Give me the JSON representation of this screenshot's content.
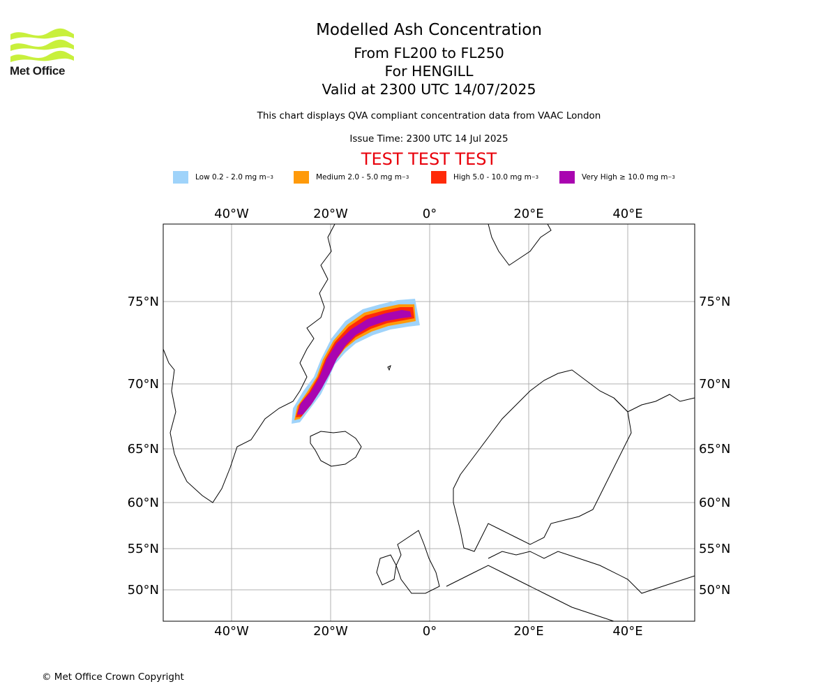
{
  "header": {
    "title": "Modelled Ash Concentration",
    "level_range": "From FL200 to FL250",
    "volcano": "For HENGILL",
    "valid": "Valid at 2300 UTC 14/07/2025",
    "description": "This chart displays QVA compliant concentration data from VAAC London",
    "issue_time": "Issue Time: 2300 UTC 14 Jul 2025",
    "test_banner": "TEST TEST TEST"
  },
  "logo": {
    "text": "Met Office",
    "color": "#c8f03c"
  },
  "legend": [
    {
      "label": "Low 0.2 - 2.0 mg m",
      "superscript": "−3",
      "color": "#9fd3fa"
    },
    {
      "label": "Medium 2.0 - 5.0 mg m",
      "superscript": "−3",
      "color": "#ff9a0a"
    },
    {
      "label": "High 5.0 - 10.0 mg m",
      "superscript": "−3",
      "color": "#ff2a08"
    },
    {
      "label": "Very High ≥ 10.0 mg m",
      "superscript": "−3",
      "color": "#a905b0"
    }
  ],
  "map": {
    "lon_labels": [
      "40°W",
      "20°W",
      "0°",
      "20°E",
      "40°E"
    ],
    "lat_labels": [
      "75°N",
      "70°N",
      "65°N",
      "60°N",
      "55°N",
      "50°N"
    ],
    "grid": true,
    "ash_plume": {
      "description_lonlat": [
        [
          -26,
          67.8
        ],
        [
          -22,
          70.5
        ],
        [
          -18,
          72.8
        ],
        [
          -10,
          74.0
        ],
        [
          -4,
          74.4
        ]
      ]
    }
  },
  "footer": {
    "copyright": "© Met Office Crown Copyright"
  }
}
